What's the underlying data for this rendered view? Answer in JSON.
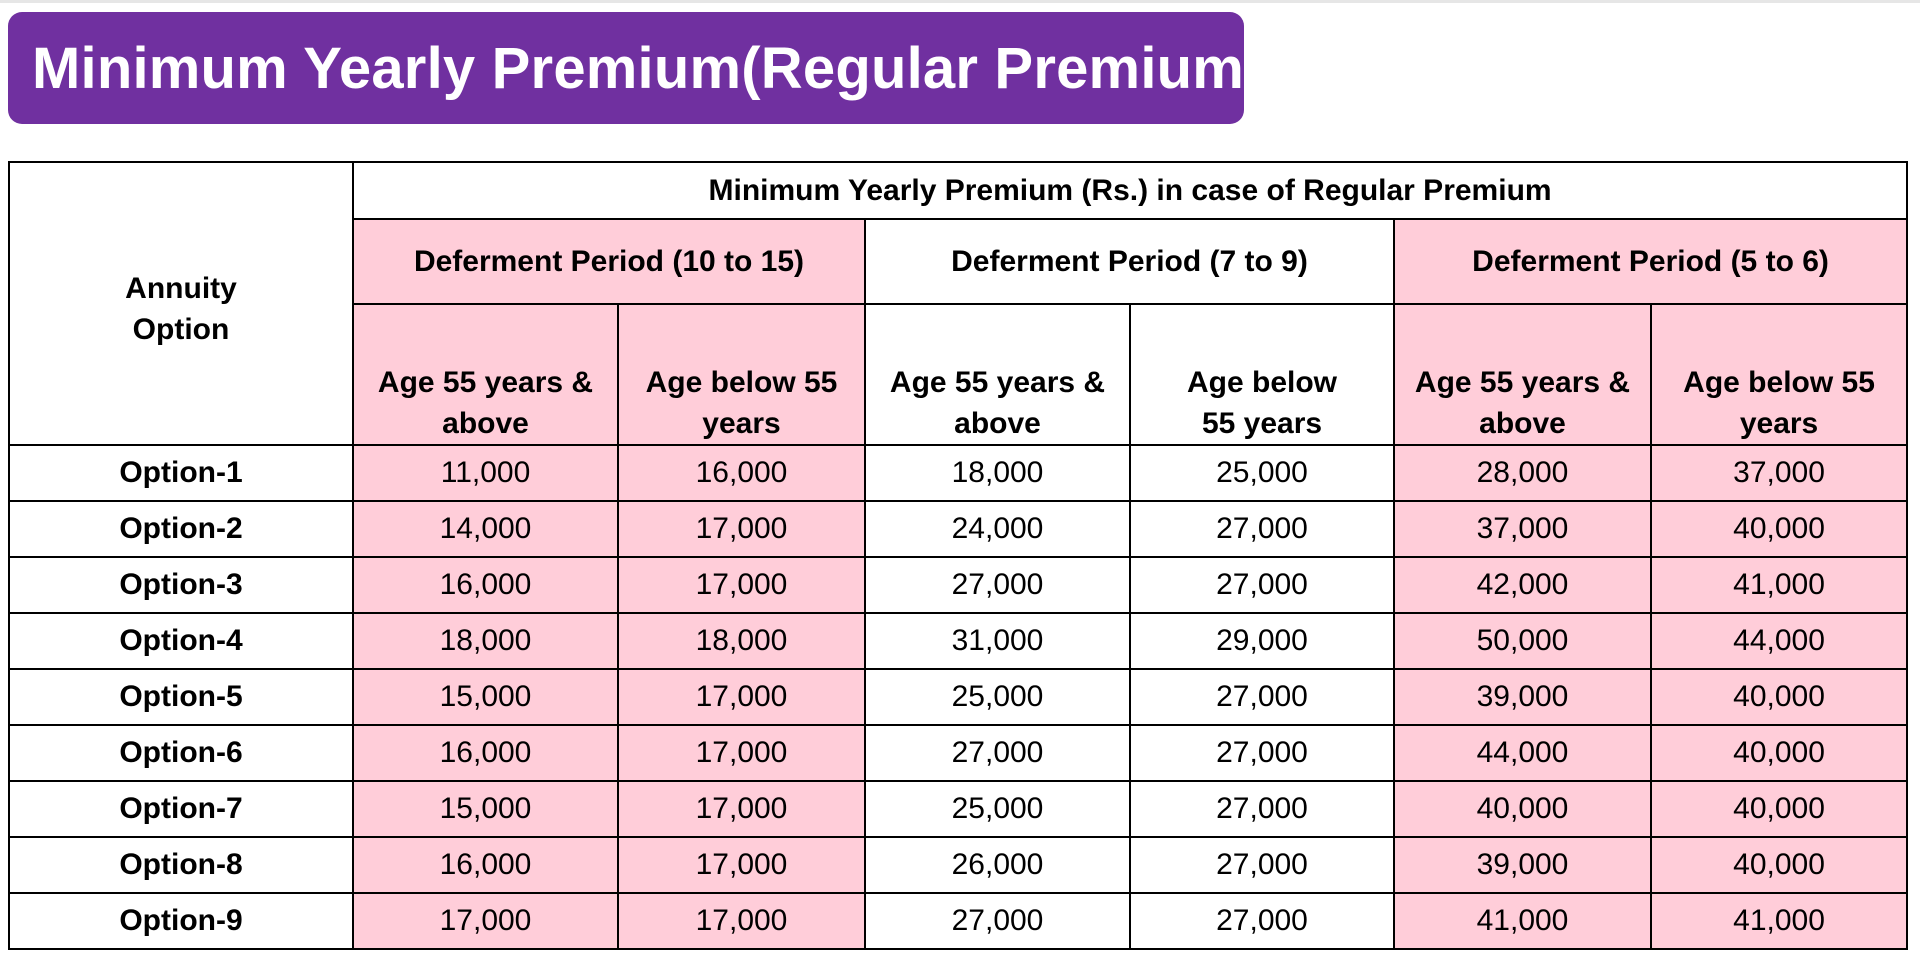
{
  "page": {
    "title": "Minimum Yearly Premium(Regular Premium):"
  },
  "table": {
    "corner_label": "Annuity Option",
    "super_header": "Minimum Yearly Premium (Rs.) in case of Regular Premium",
    "groups": [
      {
        "label": "Deferment Period (10 to 15)"
      },
      {
        "label": "Deferment Period (7 to 9)"
      },
      {
        "label": "Deferment Period (5 to 6)"
      }
    ],
    "age_headers": [
      {
        "line1": "Age 55 years &",
        "line2": "above"
      },
      {
        "line1": "Age below 55",
        "line2": "years"
      },
      {
        "line1": "Age 55 years &",
        "line2": "above"
      },
      {
        "line1": "Age below",
        "line2": "55 years"
      },
      {
        "line1": "Age 55 years &",
        "line2": "above"
      },
      {
        "line1": "Age below 55",
        "line2": "years"
      }
    ],
    "rows": [
      {
        "option": "Option-1",
        "values": [
          "11,000",
          "16,000",
          "18,000",
          "25,000",
          "28,000",
          "37,000"
        ]
      },
      {
        "option": "Option-2",
        "values": [
          "14,000",
          "17,000",
          "24,000",
          "27,000",
          "37,000",
          "40,000"
        ]
      },
      {
        "option": "Option-3",
        "values": [
          "16,000",
          "17,000",
          "27,000",
          "27,000",
          "42,000",
          "41,000"
        ]
      },
      {
        "option": "Option-4",
        "values": [
          "18,000",
          "18,000",
          "31,000",
          "29,000",
          "50,000",
          "44,000"
        ]
      },
      {
        "option": "Option-5",
        "values": [
          "15,000",
          "17,000",
          "25,000",
          "27,000",
          "39,000",
          "40,000"
        ]
      },
      {
        "option": "Option-6",
        "values": [
          "16,000",
          "17,000",
          "27,000",
          "27,000",
          "44,000",
          "40,000"
        ]
      },
      {
        "option": "Option-7",
        "values": [
          "15,000",
          "17,000",
          "25,000",
          "27,000",
          "40,000",
          "40,000"
        ]
      },
      {
        "option": "Option-8",
        "values": [
          "16,000",
          "17,000",
          "26,000",
          "27,000",
          "39,000",
          "40,000"
        ]
      },
      {
        "option": "Option-9",
        "values": [
          "17,000",
          "17,000",
          "27,000",
          "27,000",
          "41,000",
          "41,000"
        ]
      }
    ]
  },
  "colors": {
    "banner": "#7030a0",
    "pink_column": "#ffcdd9",
    "border": "#000000"
  }
}
